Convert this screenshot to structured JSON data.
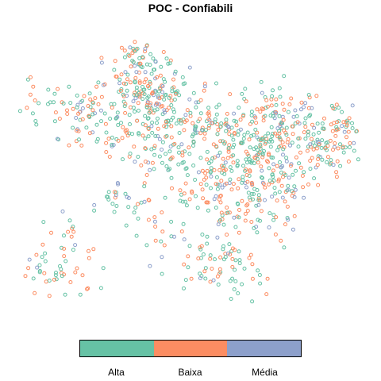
{
  "title": "POC - Confiabili",
  "legend": {
    "categories": [
      {
        "label": "Alta",
        "color": "#66C2A5"
      },
      {
        "label": "Baixa",
        "color": "#FC8D62"
      },
      {
        "label": "Média",
        "color": "#8DA0CB"
      }
    ]
  },
  "map": {
    "marker": "open-circle",
    "category_counts": {
      "Alta": 520,
      "Baixa": 430,
      "Média": 150
    }
  }
}
